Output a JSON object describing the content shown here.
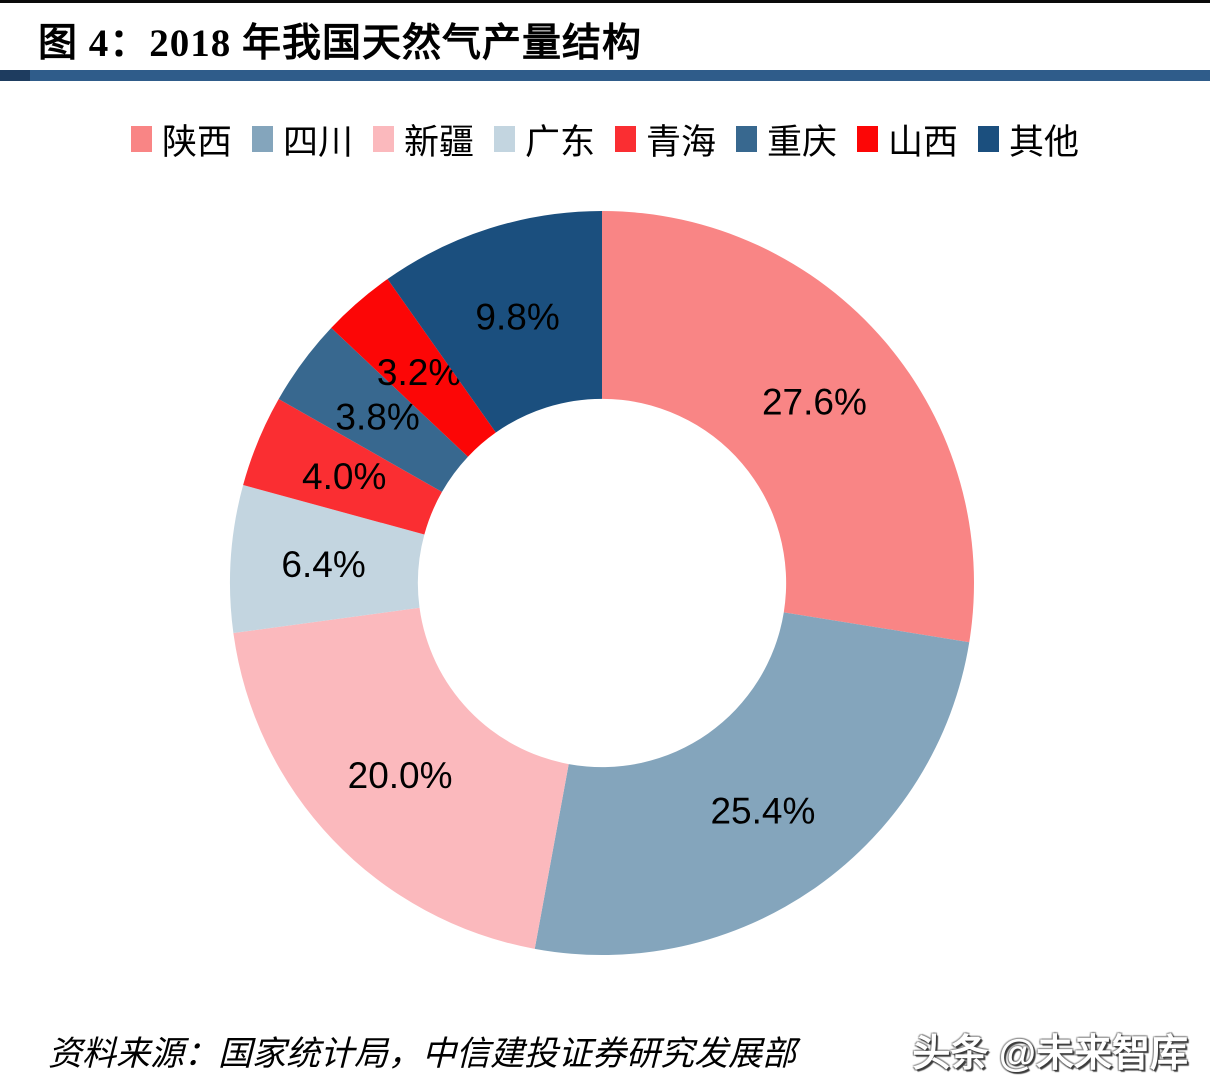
{
  "page": {
    "title": "图 4：2018 年我国天然气产量结构",
    "source": "资料来源：国家统计局，中信建投证券研究发展部",
    "watermark": "头条 @未来智库"
  },
  "decor": {
    "rule_color": "#2f5c8a",
    "rule_accent_color": "#1e3c5f",
    "top_line_color": "#0a0a0a"
  },
  "chart_data": {
    "type": "pie",
    "subtype": "donut",
    "title": "图 4：2018 年我国天然气产量结构",
    "legend_position": "top",
    "direction": "clockwise",
    "start_angle_deg": 0,
    "inner_radius_ratio": 0.495,
    "categories": [
      "陕西",
      "四川",
      "新疆",
      "广东",
      "青海",
      "重庆",
      "山西",
      "其他"
    ],
    "values": [
      27.6,
      25.4,
      20.0,
      6.4,
      4.0,
      3.8,
      3.2,
      9.8
    ],
    "labels": [
      "27.6%",
      "25.4%",
      "20.0%",
      "6.4%",
      "4.0%",
      "3.8%",
      "3.2%",
      "9.8%"
    ],
    "colors": [
      "#f98585",
      "#84a5bc",
      "#fbb9bd",
      "#c3d5e0",
      "#fa2e32",
      "#38688f",
      "#fc0606",
      "#1b4f7e"
    ],
    "slice_names": [
      "shaanxi",
      "sichuan",
      "xinjiang",
      "guangdong",
      "qinghai",
      "chongqing",
      "shanxi",
      "other"
    ]
  }
}
